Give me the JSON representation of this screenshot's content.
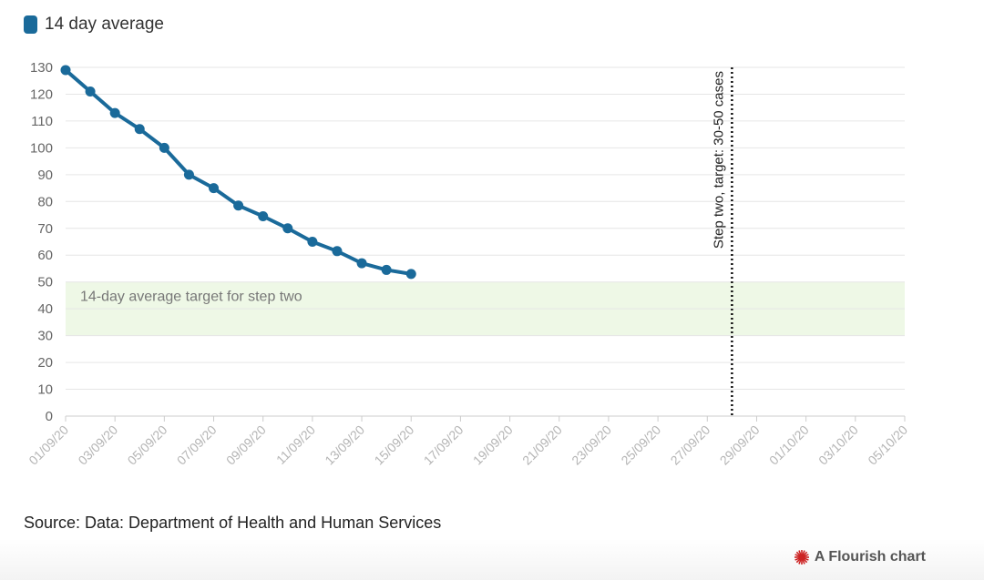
{
  "legend": {
    "label": "14 day average",
    "color": "#1a6a9a"
  },
  "source": "Source: Data: Department of Health and Human Services",
  "credit": {
    "label": "A Flourish chart",
    "icon": "flourish-burst-icon",
    "icon_color": "#cc2222"
  },
  "colors": {
    "line": "#1a6a9a",
    "band": "#eef8e6",
    "grid": "#e6e6e6",
    "axis": "#cccccc",
    "ref_line": "#111111"
  },
  "chart_data": {
    "type": "line",
    "title": "",
    "xlabel": "",
    "ylabel": "",
    "ylim": [
      0,
      130
    ],
    "yticks": [
      0,
      10,
      20,
      30,
      40,
      50,
      60,
      70,
      80,
      90,
      100,
      110,
      120,
      130
    ],
    "x_range_days": [
      0,
      34
    ],
    "xtick_labels": [
      "01/09/20",
      "03/09/20",
      "05/09/20",
      "07/09/20",
      "09/09/20",
      "11/09/20",
      "13/09/20",
      "15/09/20",
      "17/09/20",
      "19/09/20",
      "21/09/20",
      "23/09/20",
      "25/09/20",
      "27/09/20",
      "29/09/20",
      "01/10/20",
      "03/10/20",
      "05/10/20"
    ],
    "xtick_step_days": 2,
    "series": [
      {
        "name": "14 day average",
        "x": [
          "01/09/20",
          "02/09/20",
          "03/09/20",
          "04/09/20",
          "05/09/20",
          "06/09/20",
          "07/09/20",
          "08/09/20",
          "09/09/20",
          "10/09/20",
          "11/09/20",
          "12/09/20",
          "13/09/20",
          "14/09/20",
          "15/09/20"
        ],
        "values": [
          129,
          121,
          113,
          107,
          100,
          90,
          85,
          78.5,
          74.5,
          70,
          65,
          61.5,
          57,
          54.5,
          53
        ]
      }
    ],
    "band": {
      "from": 30,
      "to": 50,
      "label": "14-day average target for step two"
    },
    "reference_line": {
      "x_day": 27,
      "label": "Step two, target: 30-50 cases"
    }
  }
}
